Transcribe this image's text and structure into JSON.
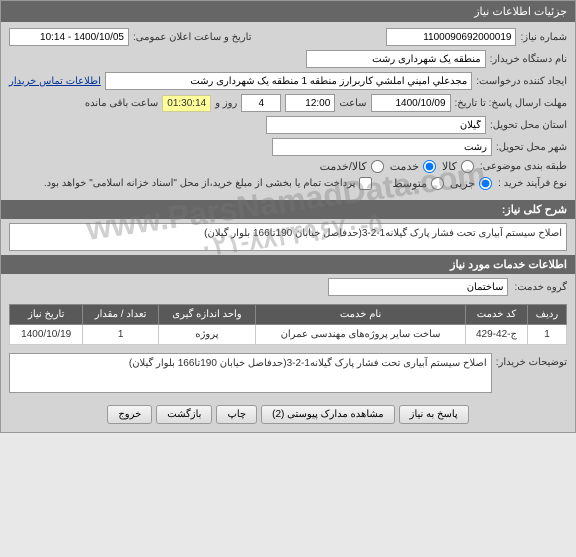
{
  "header": {
    "title": "جزئیات اطلاعات نیاز"
  },
  "form": {
    "need_no_label": "شماره نیاز:",
    "need_no": "1100090692000019",
    "announce_label": "تاریخ و ساعت اعلان عمومی:",
    "announce_value": "1400/10/05 - 10:14",
    "buyer_org_label": "نام دستگاه خریدار:",
    "buyer_org": "منطقه یک شهرداری رشت",
    "requester_label": "ایجاد کننده درخواست:",
    "requester": "مجدعلي امیني املشي کاربرارز منطقه 1 منطقه یک شهرداری رشت",
    "contact_link": "اطلاعات تماس خریدار",
    "deadline_label": "مهلت ارسال پاسخ: تا تاریخ:",
    "deadline_date": "1400/10/09",
    "time_label": "ساعت",
    "deadline_time": "12:00",
    "days": "4",
    "days_label": "روز و",
    "remain_time": "01:30:14",
    "remain_label": "ساعت باقی مانده",
    "province_label": "استان محل تحویل:",
    "province": "گیلان",
    "city_label": "شهر محل تحویل:",
    "city": "رشت",
    "cat_label": "طبقه بندی موضوعی:",
    "cat_kala": "کالا",
    "cat_service": "خدمت",
    "cat_both": "کالا/خدمت",
    "buy_type_label": "نوع فرآیند خرید :",
    "buy_minor": "جزیی",
    "buy_medium": "متوسط",
    "pay_note": "پرداخت تمام یا بخشی از مبلغ خرید،از محل \"اسناد خزانه اسلامی\" خواهد بود."
  },
  "need_desc": {
    "title": "شرح کلی نیاز:",
    "text": "اصلاح سیستم آبیاری تحت فشار پارک گیلانه1-2-3(حدفاصل خیابان 190تا166 بلوار گیلان)"
  },
  "service_info": {
    "title": "اطلاعات خدمات مورد نیاز",
    "group_label": "گروه خدمت:",
    "group_value": "ساختمان"
  },
  "table": {
    "headers": [
      "ردیف",
      "کد خدمت",
      "نام خدمت",
      "واحد اندازه گیری",
      "تعداد / مقدار",
      "تاریخ نیاز"
    ],
    "rows": [
      [
        "1",
        "ج-42-429",
        "ساخت سایر پروژه‌های مهندسی عمران",
        "پروژه",
        "1",
        "1400/10/19"
      ]
    ]
  },
  "buyer_notes": {
    "label": "توضیحات خریدار:",
    "text": "اصلاح سیستم آبیاری تحت فشار پارک گیلانه1-2-3(حدفاصل خیابان 190تا166 بلوار گیلان)"
  },
  "buttons": {
    "reply": "پاسخ به نیاز",
    "attachments": "مشاهده مدارک پیوستی (2)",
    "print": "چاپ",
    "back": "بازگشت",
    "exit": "خروج"
  },
  "watermark": {
    "site": "www.ParsNamadData.com",
    "phone": "۰۲۱-۸۸۳۴۹۶۷۰-۵"
  }
}
